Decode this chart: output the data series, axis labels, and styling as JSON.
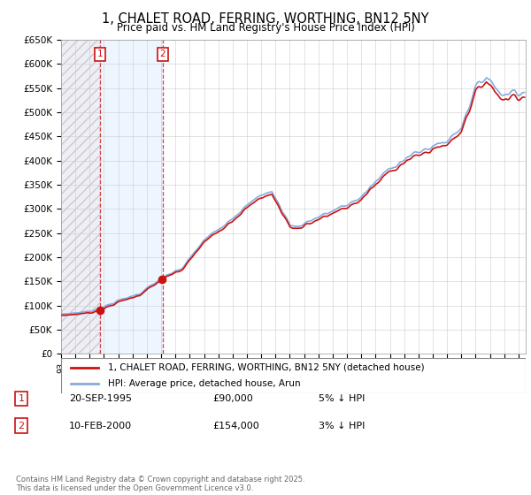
{
  "title": "1, CHALET ROAD, FERRING, WORTHING, BN12 5NY",
  "subtitle": "Price paid vs. HM Land Registry's House Price Index (HPI)",
  "legend_line1": "1, CHALET ROAD, FERRING, WORTHING, BN12 5NY (detached house)",
  "legend_line2": "HPI: Average price, detached house, Arun",
  "footer": "Contains HM Land Registry data © Crown copyright and database right 2025.\nThis data is licensed under the Open Government Licence v3.0.",
  "purchases": [
    {
      "label": "1",
      "date": "20-SEP-1995",
      "price": 90000,
      "pct": "5%",
      "dir": "↓",
      "date_num": 1995.72
    },
    {
      "label": "2",
      "date": "10-FEB-2000",
      "price": 154000,
      "pct": "3%",
      "dir": "↓",
      "date_num": 2000.11
    }
  ],
  "hpi_color": "#88aadd",
  "price_color": "#cc1111",
  "shade_color": "#ddeeff",
  "ylim": [
    0,
    650000
  ],
  "ytick_step": 50000,
  "xmin": 1993.0,
  "xmax": 2025.5
}
